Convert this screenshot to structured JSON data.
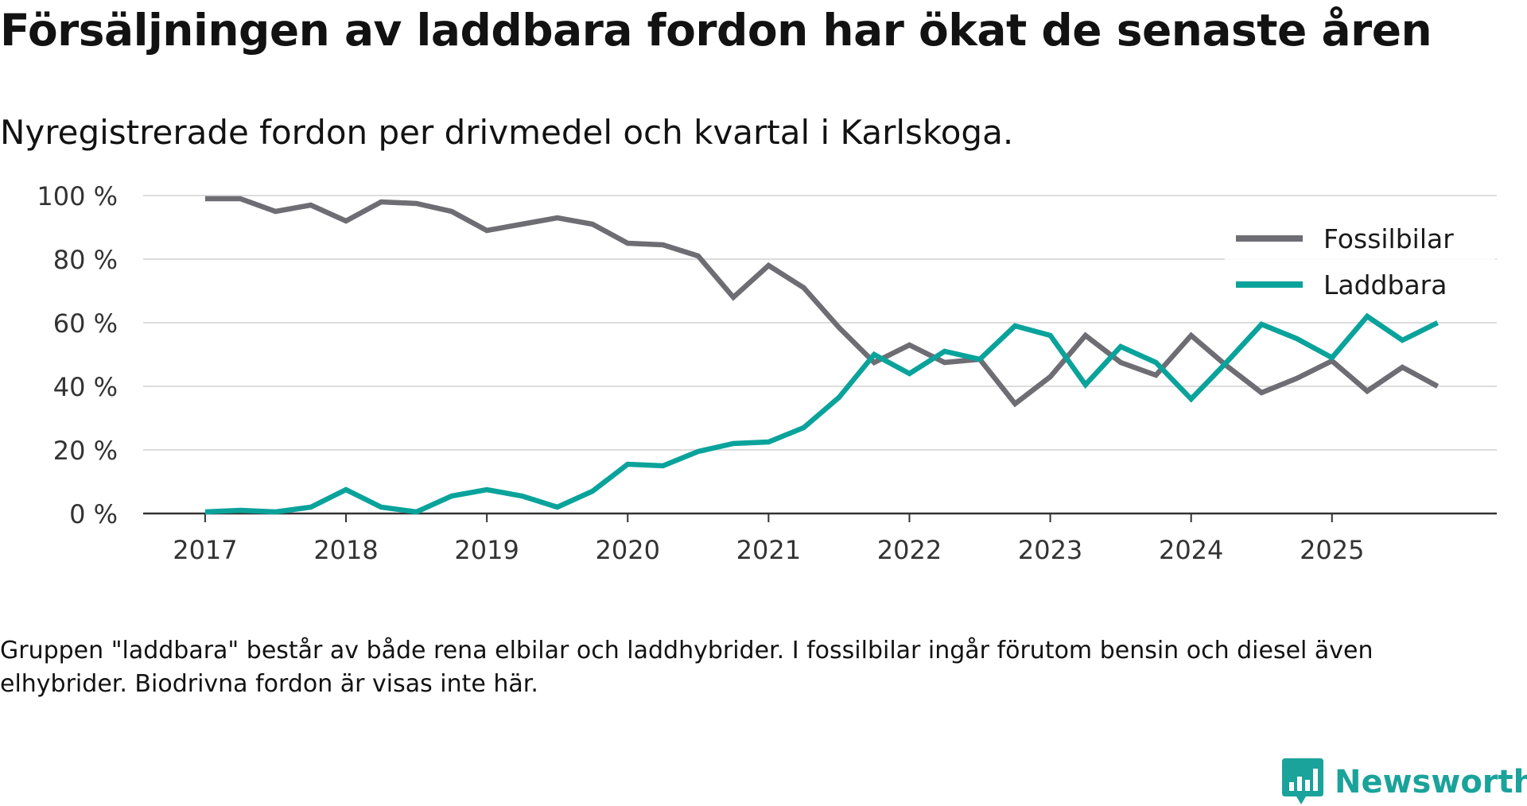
{
  "title": "Försäljningen av laddbara fordon har ökat de senaste åren",
  "subtitle": "Nyregistrerade fordon per drivmedel och kvartal i Karlskoga.",
  "note": "Gruppen \"laddbara\" består av både rena elbilar och laddhybrider. I fossilbilar ingår förutom bensin och diesel även elhybrider. Biodrivna fordon är visas inte här.",
  "brand": {
    "name": "Newsworthy",
    "color": "#1aa39a"
  },
  "chart_data": {
    "type": "line",
    "title": "Försäljningen av laddbara fordon har ökat de senaste åren",
    "subtitle": "Nyregistrerade fordon per drivmedel och kvartal i Karlskoga.",
    "xlabel": "",
    "ylabel": "",
    "ylim": [
      0,
      100
    ],
    "xlim": [
      2016.56,
      2026.17
    ],
    "grid": true,
    "legend_position": "top-right",
    "x_ticks": [
      2017,
      2018,
      2019,
      2020,
      2021,
      2022,
      2023,
      2024,
      2025
    ],
    "x_tick_labels": [
      "2017",
      "2018",
      "2019",
      "2020",
      "2021",
      "2022",
      "2023",
      "2024",
      "2025"
    ],
    "y_ticks": [
      0,
      20,
      40,
      60,
      80,
      100
    ],
    "y_tick_labels": [
      "0 %",
      "20 %",
      "40 %",
      "60 %",
      "80 %",
      "100 %"
    ],
    "x": [
      2017.0,
      2017.25,
      2017.5,
      2017.75,
      2018.0,
      2018.25,
      2018.5,
      2018.75,
      2019.0,
      2019.25,
      2019.5,
      2019.75,
      2020.0,
      2020.25,
      2020.5,
      2020.75,
      2021.0,
      2021.25,
      2021.5,
      2021.75,
      2022.0,
      2022.25,
      2022.5,
      2022.75,
      2023.0,
      2023.25,
      2023.5,
      2023.75,
      2024.0,
      2024.25,
      2024.5,
      2024.75,
      2025.0,
      2025.25,
      2025.5,
      2025.75
    ],
    "series": [
      {
        "name": "Fossilbilar",
        "color": "#6e6d74",
        "values": [
          99,
          99,
          95,
          97,
          92,
          98,
          97.5,
          95,
          89,
          91,
          93,
          91,
          85,
          84.5,
          81,
          68,
          78,
          71,
          58.5,
          47.5,
          53,
          47.5,
          48.5,
          34.5,
          43,
          56,
          47.5,
          43.5,
          56,
          46.5,
          38,
          42.5,
          48,
          38.5,
          46,
          40
        ]
      },
      {
        "name": "Laddbara",
        "color": "#0aa39b",
        "values": [
          0.5,
          1,
          0.5,
          2,
          7.5,
          2,
          0.5,
          5.5,
          7.5,
          5.5,
          2,
          7,
          15.5,
          15,
          19.5,
          22,
          22.5,
          27,
          36.5,
          50,
          44,
          51,
          48.5,
          59,
          56,
          40.5,
          52.5,
          47.5,
          36,
          47.5,
          59.5,
          55,
          49,
          62,
          54.5,
          60
        ]
      }
    ]
  }
}
